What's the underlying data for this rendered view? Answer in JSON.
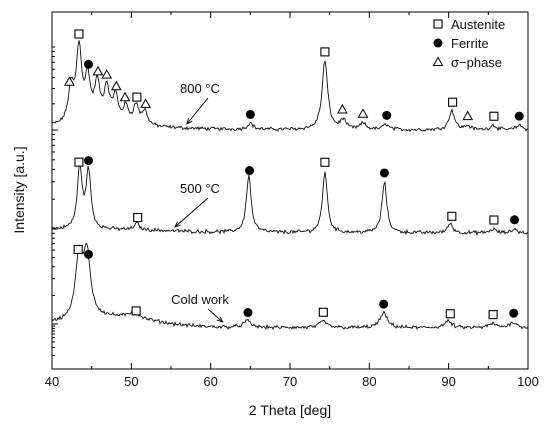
{
  "chart_data": {
    "type": "line",
    "xlabel": "2 Theta [deg]",
    "ylabel": "Intensity [a.u.]",
    "xlim": [
      40,
      100
    ],
    "x_ticks": [
      "40",
      "50",
      "60",
      "70",
      "80",
      "90",
      "100"
    ],
    "y_scale": "log",
    "grid": false,
    "legend_position": "top-right",
    "legend": [
      {
        "symbol": "open-square",
        "label": "Austenite"
      },
      {
        "symbol": "filled-circle",
        "label": "Ferrite"
      },
      {
        "symbol": "open-triangle",
        "label": "σ−phase"
      }
    ],
    "series": [
      {
        "name": "800 °C",
        "peaks": [
          {
            "x": 42.4,
            "h": 0.45
          },
          {
            "x": 43.4,
            "h": 0.95
          },
          {
            "x": 44.5,
            "h": 0.55
          },
          {
            "x": 45.7,
            "h": 0.5
          },
          {
            "x": 46.9,
            "h": 0.45
          },
          {
            "x": 48.0,
            "h": 0.35
          },
          {
            "x": 49.3,
            "h": 0.22
          },
          {
            "x": 50.6,
            "h": 0.25
          },
          {
            "x": 51.7,
            "h": 0.18
          },
          {
            "x": 65.0,
            "h": 0.08
          },
          {
            "x": 74.4,
            "h": 0.88
          },
          {
            "x": 76.7,
            "h": 0.12
          },
          {
            "x": 79.2,
            "h": 0.08
          },
          {
            "x": 82.1,
            "h": 0.07
          },
          {
            "x": 90.4,
            "h": 0.25
          },
          {
            "x": 92.4,
            "h": 0.05
          },
          {
            "x": 95.6,
            "h": 0.06
          },
          {
            "x": 98.9,
            "h": 0.06
          }
        ]
      },
      {
        "name": "500 °C",
        "peaks": [
          {
            "x": 43.5,
            "h": 0.75
          },
          {
            "x": 44.6,
            "h": 0.7
          },
          {
            "x": 50.7,
            "h": 0.08
          },
          {
            "x": 64.8,
            "h": 0.7
          },
          {
            "x": 74.4,
            "h": 0.75
          },
          {
            "x": 81.9,
            "h": 0.62
          },
          {
            "x": 90.2,
            "h": 0.12
          },
          {
            "x": 95.6,
            "h": 0.05
          },
          {
            "x": 98.3,
            "h": 0.05
          }
        ]
      },
      {
        "name": "Cold work",
        "peaks": [
          {
            "x": 43.4,
            "h": 0.72
          },
          {
            "x": 44.4,
            "h": 0.75
          },
          {
            "x": 50.4,
            "h": 0.1
          },
          {
            "x": 64.6,
            "h": 0.08
          },
          {
            "x": 74.2,
            "h": 0.08
          },
          {
            "x": 81.8,
            "h": 0.18
          },
          {
            "x": 89.9,
            "h": 0.08
          },
          {
            "x": 95.5,
            "h": 0.05
          },
          {
            "x": 98.1,
            "h": 0.07
          }
        ]
      }
    ],
    "markers": [
      {
        "series": 0,
        "type": "triangle",
        "x": 42.2
      },
      {
        "series": 0,
        "type": "square",
        "x": 43.4
      },
      {
        "series": 0,
        "type": "circle",
        "x": 44.6
      },
      {
        "series": 0,
        "type": "triangle",
        "x": 45.8
      },
      {
        "series": 0,
        "type": "triangle",
        "x": 46.9
      },
      {
        "series": 0,
        "type": "triangle",
        "x": 48.1
      },
      {
        "series": 0,
        "type": "triangle",
        "x": 49.2
      },
      {
        "series": 0,
        "type": "square",
        "x": 50.7
      },
      {
        "series": 0,
        "type": "triangle",
        "x": 51.8
      },
      {
        "series": 0,
        "type": "circle",
        "x": 65.0
      },
      {
        "series": 0,
        "type": "square",
        "x": 74.4
      },
      {
        "series": 0,
        "type": "triangle",
        "x": 76.6
      },
      {
        "series": 0,
        "type": "triangle",
        "x": 79.2
      },
      {
        "series": 0,
        "type": "circle",
        "x": 82.2
      },
      {
        "series": 0,
        "type": "square",
        "x": 90.5
      },
      {
        "series": 0,
        "type": "triangle",
        "x": 92.4
      },
      {
        "series": 0,
        "type": "square",
        "x": 95.7
      },
      {
        "series": 0,
        "type": "circle",
        "x": 98.9
      },
      {
        "series": 1,
        "type": "square",
        "x": 43.4
      },
      {
        "series": 1,
        "type": "circle",
        "x": 44.6
      },
      {
        "series": 1,
        "type": "square",
        "x": 50.8
      },
      {
        "series": 1,
        "type": "circle",
        "x": 64.9
      },
      {
        "series": 1,
        "type": "square",
        "x": 74.4
      },
      {
        "series": 1,
        "type": "circle",
        "x": 81.9
      },
      {
        "series": 1,
        "type": "square",
        "x": 90.4
      },
      {
        "series": 1,
        "type": "square",
        "x": 95.7
      },
      {
        "series": 1,
        "type": "circle",
        "x": 98.3
      },
      {
        "series": 2,
        "type": "square",
        "x": 43.3
      },
      {
        "series": 2,
        "type": "circle",
        "x": 44.6
      },
      {
        "series": 2,
        "type": "square",
        "x": 50.6
      },
      {
        "series": 2,
        "type": "circle",
        "x": 64.7
      },
      {
        "series": 2,
        "type": "square",
        "x": 74.2
      },
      {
        "series": 2,
        "type": "circle",
        "x": 81.8
      },
      {
        "series": 2,
        "type": "square",
        "x": 90.2
      },
      {
        "series": 2,
        "type": "square",
        "x": 95.6
      },
      {
        "series": 2,
        "type": "circle",
        "x": 98.2
      }
    ],
    "annotations": [
      {
        "series": 0,
        "text": "800 °C",
        "target_x": 57.0
      },
      {
        "series": 1,
        "text": "500 °C",
        "target_x": 55.5
      },
      {
        "series": 2,
        "text": "Cold work",
        "target_x": 61.5
      }
    ]
  }
}
